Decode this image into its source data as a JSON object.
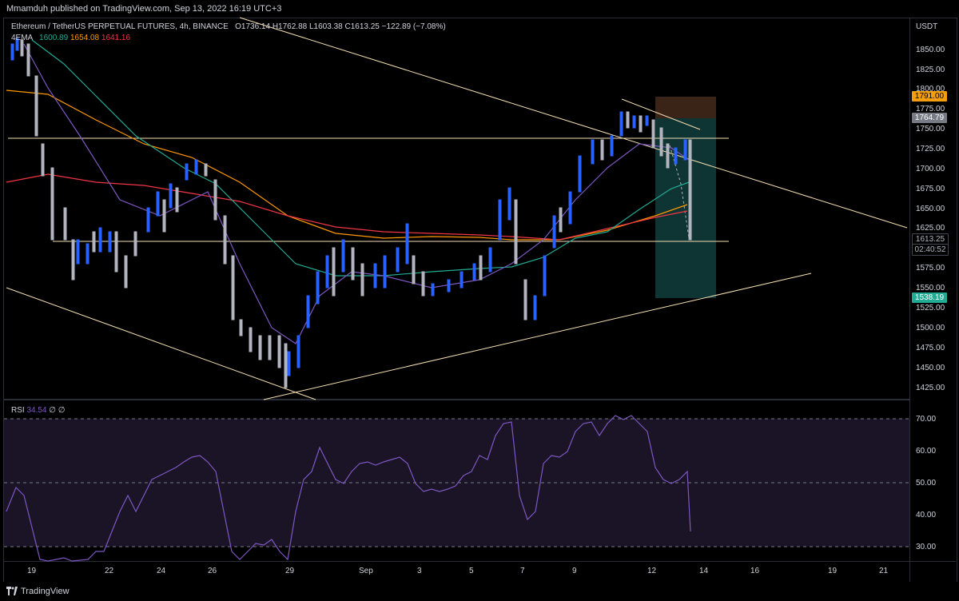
{
  "header": {
    "publish_text": "Mmamduh published on TradingView.com, Sep 13, 2022 16:19 UTC+3"
  },
  "legend": {
    "symbol": "Ethereum / TetherUS PERPETUAL FUTURES, 4h, BINANCE",
    "open": "O1736.14",
    "high": "H1762.88",
    "low": "L1603.38",
    "close": "C1613.25",
    "change": "−122.89 (−7.08%)",
    "ema_label": "4EMA",
    "ema_values": [
      "1600.89",
      "1654.08",
      "1641.16"
    ],
    "colors": {
      "ema_green": "#22ab94",
      "ema_orange": "#ff9800",
      "ema_red": "#f23645"
    }
  },
  "rsi_legend": {
    "label": "RSI",
    "value": "34.54",
    "extra1": "∅",
    "extra2": "∅"
  },
  "price_axis": {
    "currency": "USDT",
    "ticks": [
      "1850.00",
      "1825.00",
      "1800.00",
      "1775.00",
      "1750.00",
      "1725.00",
      "1700.00",
      "1675.00",
      "1650.00",
      "1625.00",
      "1575.00",
      "1550.00",
      "1525.00",
      "1500.00",
      "1475.00",
      "1450.00",
      "1425.00"
    ],
    "tags": {
      "stop": "1791.00",
      "entry": "1764.79",
      "current": "1613.25",
      "countdown": "02:40:52",
      "target": "1538.19"
    }
  },
  "rsi_axis": {
    "ticks": [
      "70.00",
      "60.00",
      "50.00",
      "40.00",
      "30.00"
    ]
  },
  "time_axis": {
    "ticks": [
      "19",
      "22",
      "24",
      "26",
      "29",
      "Sep",
      "3",
      "5",
      "7",
      "9",
      "12",
      "14",
      "16",
      "19",
      "21"
    ]
  },
  "footer": {
    "brand": "TradingView"
  }
}
